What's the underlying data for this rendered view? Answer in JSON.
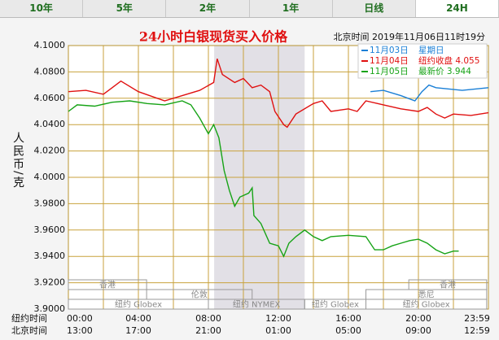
{
  "tabs": [
    "10年",
    "5年",
    "2年",
    "1年",
    "日线",
    "24H"
  ],
  "active_tab": 5,
  "chart_data": {
    "type": "line",
    "title": "24小时白银现货买入价格",
    "subtitle": "北京时间 2019年11月06日11时19分",
    "ylabel": "人民币/克",
    "ylim": [
      3.9,
      4.1
    ],
    "yticks": [
      {
        "value": 3.9,
        "label": "3.9000"
      },
      {
        "value": 3.92,
        "label": "3.9200"
      },
      {
        "value": 3.94,
        "label": "3.9400"
      },
      {
        "value": 3.96,
        "label": "3.9600"
      },
      {
        "value": 3.98,
        "label": "3.9800"
      },
      {
        "value": 4.0,
        "label": "4.0000"
      },
      {
        "value": 4.02,
        "label": "4.0200"
      },
      {
        "value": 4.04,
        "label": "4.0400"
      },
      {
        "value": 4.06,
        "label": "4.0600"
      },
      {
        "value": 4.08,
        "label": "4.0800"
      },
      {
        "value": 4.1,
        "label": "4.1000"
      }
    ],
    "xlim": [
      0,
      24
    ],
    "xgrid": [
      0,
      2,
      4,
      6,
      8,
      10,
      12,
      14,
      16,
      18,
      20,
      22,
      24
    ],
    "x_rows": [
      {
        "name": "纽约时间",
        "ticks": [
          {
            "value": 0,
            "label": "00:00"
          },
          {
            "value": 4,
            "label": "04:00"
          },
          {
            "value": 8,
            "label": "08:00"
          },
          {
            "value": 12,
            "label": "12:00"
          },
          {
            "value": 16,
            "label": "16:00"
          },
          {
            "value": 20,
            "label": "20:00"
          },
          {
            "value": 24,
            "label": "23:59"
          }
        ]
      },
      {
        "name": "北京时间",
        "ticks": [
          {
            "value": 0,
            "label": "13:00"
          },
          {
            "value": 4,
            "label": "17:00"
          },
          {
            "value": 8,
            "label": "21:00"
          },
          {
            "value": 12,
            "label": "01:00"
          },
          {
            "value": 16,
            "label": "05:00"
          },
          {
            "value": 20,
            "label": "09:00"
          },
          {
            "value": 24,
            "label": "12:59"
          }
        ]
      }
    ],
    "highlight": [
      8.33,
      13.5
    ],
    "sessions": [
      {
        "name": "香港",
        "row": 0,
        "start": 0,
        "end": 4.47
      },
      {
        "name": "香港",
        "row": 0,
        "start": 19.45,
        "end": 23.9
      },
      {
        "name": "伦敦",
        "row": 1,
        "start": 4.47,
        "end": 10.5
      },
      {
        "name": "悉尼",
        "row": 1,
        "start": 17,
        "end": 23.9
      },
      {
        "name": "纽约 Globex",
        "row": 2,
        "start": 0,
        "end": 8.0
      },
      {
        "name": "纽约 NYMEX",
        "row": 2,
        "start": 8.0,
        "end": 13.5
      },
      {
        "name": "纽约 Globex",
        "row": 2,
        "start": 13.5,
        "end": 17
      },
      {
        "name": "纽约 Globex",
        "row": 2,
        "start": 17,
        "end": 23.9
      }
    ],
    "series": [
      {
        "name": "11月03日",
        "legend_note": "星期日",
        "color": "#1a7fd6",
        "x": [
          17.26,
          18,
          19,
          19.8,
          20.2,
          20.6,
          21,
          22.5,
          24
        ],
        "values": [
          4.065,
          4.066,
          4.062,
          4.058,
          4.065,
          4.07,
          4.068,
          4.066,
          4.068
        ]
      },
      {
        "name": "11月04日",
        "legend_note": "纽约收盘 4.055",
        "color": "#e01010",
        "x": [
          0,
          1,
          2,
          2.5,
          3,
          4,
          5.5,
          6.5,
          7.5,
          8.3,
          8.5,
          8.8,
          9.5,
          10,
          10.5,
          11,
          11.5,
          11.8,
          12.3,
          12.5,
          13,
          14,
          14.5,
          15,
          16,
          16.5,
          17,
          18,
          19,
          20,
          20.5,
          21,
          21.5,
          22,
          23,
          24
        ],
        "values": [
          4.065,
          4.066,
          4.063,
          4.068,
          4.073,
          4.065,
          4.058,
          4.062,
          4.066,
          4.072,
          4.09,
          4.078,
          4.072,
          4.075,
          4.068,
          4.07,
          4.065,
          4.05,
          4.04,
          4.038,
          4.048,
          4.056,
          4.058,
          4.05,
          4.052,
          4.05,
          4.058,
          4.055,
          4.052,
          4.05,
          4.053,
          4.048,
          4.045,
          4.048,
          4.047,
          4.049
        ]
      },
      {
        "name": "11月05日",
        "legend_note": "最新价 3.944",
        "color": "#16a316",
        "x": [
          0,
          0.5,
          1.5,
          2.5,
          3.5,
          4.5,
          5.5,
          6.5,
          7,
          7.5,
          8,
          8.3,
          8.6,
          8.9,
          9.2,
          9.5,
          9.8,
          10.3,
          10.5,
          10.6,
          11,
          11.5,
          12,
          12.3,
          12.6,
          13,
          13.5,
          14,
          14.5,
          15,
          16,
          17,
          17.5,
          18,
          18.5,
          19,
          19.5,
          20,
          20.5,
          21,
          21.5,
          22,
          22.3
        ],
        "values": [
          4.05,
          4.055,
          4.054,
          4.057,
          4.058,
          4.056,
          4.055,
          4.058,
          4.055,
          4.045,
          4.033,
          4.04,
          4.03,
          4.005,
          3.99,
          3.978,
          3.985,
          3.988,
          3.992,
          3.971,
          3.965,
          3.95,
          3.948,
          3.94,
          3.95,
          3.955,
          3.96,
          3.955,
          3.952,
          3.955,
          3.956,
          3.955,
          3.945,
          3.945,
          3.948,
          3.95,
          3.952,
          3.953,
          3.95,
          3.945,
          3.942,
          3.944,
          3.944
        ]
      }
    ]
  }
}
